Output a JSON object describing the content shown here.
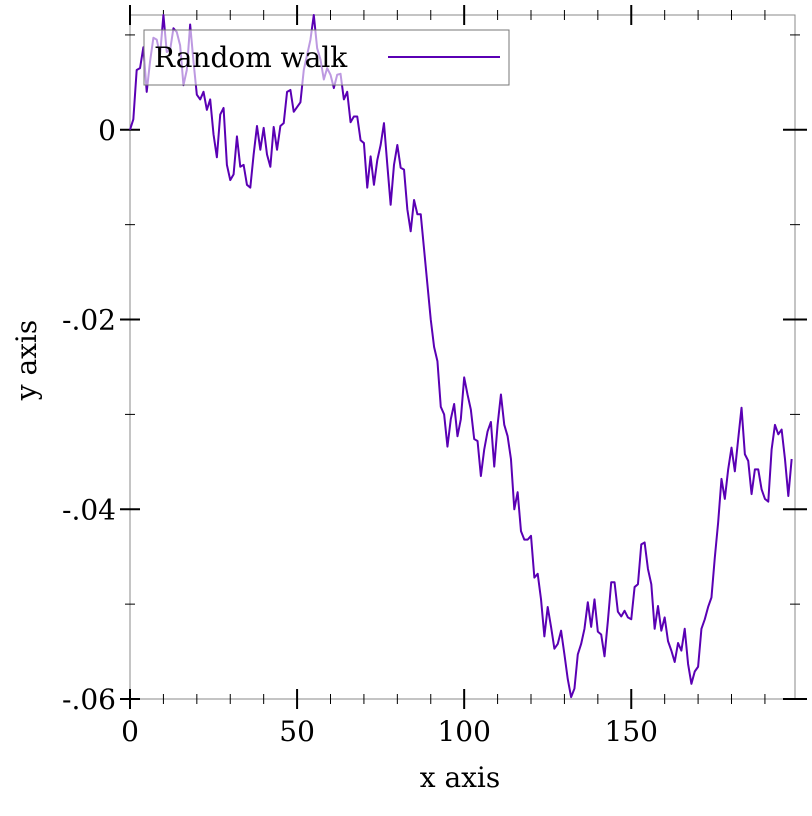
{
  "chart_data": {
    "type": "line",
    "xlabel": "x axis",
    "ylabel": "y axis",
    "x": [
      0,
      1,
      2,
      3,
      4,
      5,
      6,
      7,
      8,
      9,
      10,
      11,
      12,
      13,
      14,
      15,
      16,
      17,
      18,
      19,
      20,
      21,
      22,
      23,
      24,
      25,
      26,
      27,
      28,
      29,
      30,
      31,
      32,
      33,
      34,
      35,
      36,
      37,
      38,
      39,
      40,
      41,
      42,
      43,
      44,
      45,
      46,
      47,
      48,
      49,
      50,
      51,
      52,
      53,
      54,
      55,
      56,
      57,
      58,
      59,
      60,
      61,
      62,
      63,
      64,
      65,
      66,
      67,
      68,
      69,
      70,
      71,
      72,
      73,
      74,
      75,
      76,
      77,
      78,
      79,
      80,
      81,
      82,
      83,
      84,
      85,
      86,
      87,
      88,
      89,
      90,
      91,
      92,
      93,
      94,
      95,
      96,
      97,
      98,
      99,
      100,
      101,
      102,
      103,
      104,
      105,
      106,
      107,
      108,
      109,
      110,
      111,
      112,
      113,
      114,
      115,
      116,
      117,
      118,
      119,
      120,
      121,
      122,
      123,
      124,
      125,
      126,
      127,
      128,
      129,
      130,
      131,
      132,
      133,
      134,
      135,
      136,
      137,
      138,
      139,
      140,
      141,
      142,
      143,
      144,
      145,
      146,
      147,
      148,
      149,
      150,
      151,
      152,
      153,
      154,
      155,
      156,
      157,
      158,
      159,
      160,
      161,
      162,
      163,
      164,
      165,
      166,
      167,
      168,
      169,
      170,
      171,
      172,
      173,
      174,
      175,
      176,
      177,
      178,
      179,
      180,
      181,
      182,
      183,
      184,
      185,
      186,
      187,
      188,
      189,
      190,
      191,
      192,
      193,
      194,
      195,
      196,
      197,
      198
    ],
    "series": [
      {
        "name": "Random walk",
        "color": "#5a00b4",
        "values": [
          0,
          0.0011,
          0.0063,
          0.0065,
          0.0087,
          0.004,
          0.0072,
          0.0097,
          0.0095,
          0.0079,
          0.0121,
          0.0082,
          0.0084,
          0.0107,
          0.0103,
          0.0089,
          0.0047,
          0.0063,
          0.0111,
          0.0072,
          0.0037,
          0.0032,
          0.004,
          0.0021,
          0.0032,
          -0.0005,
          -0.0029,
          0.0016,
          0.0023,
          -0.0037,
          -0.0053,
          -0.0047,
          -0.0007,
          -0.0039,
          -0.0037,
          -0.0058,
          -0.0061,
          -0.0026,
          0.0004,
          -0.0021,
          0.0002,
          -0.0026,
          -0.0039,
          0.0003,
          -0.0021,
          0.0004,
          0.0007,
          0.004,
          0.0042,
          0.0019,
          0.0024,
          0.0029,
          0.0063,
          0.0079,
          0.0095,
          0.0121,
          0.0086,
          0.0074,
          0.0053,
          0.0065,
          0.0058,
          0.0044,
          0.0058,
          0.0059,
          0.0032,
          0.004,
          0.0008,
          0.0014,
          0.0014,
          -0.0011,
          -0.0014,
          -0.0061,
          -0.0028,
          -0.0058,
          -0.0032,
          -0.0016,
          0.0007,
          -0.0037,
          -0.0079,
          -0.0037,
          -0.0016,
          -0.004,
          -0.0042,
          -0.0084,
          -0.0107,
          -0.0074,
          -0.0089,
          -0.0089,
          -0.0126,
          -0.0163,
          -0.02,
          -0.0229,
          -0.0244,
          -0.0292,
          -0.03,
          -0.0334,
          -0.0305,
          -0.0289,
          -0.0323,
          -0.0305,
          -0.0261,
          -0.0279,
          -0.0295,
          -0.0326,
          -0.0328,
          -0.0365,
          -0.0337,
          -0.0318,
          -0.0308,
          -0.0355,
          -0.0311,
          -0.0279,
          -0.0311,
          -0.0323,
          -0.0347,
          -0.04,
          -0.0382,
          -0.0423,
          -0.0432,
          -0.0432,
          -0.0428,
          -0.0472,
          -0.0468,
          -0.0495,
          -0.0534,
          -0.0503,
          -0.0524,
          -0.0547,
          -0.0542,
          -0.0528,
          -0.0553,
          -0.0579,
          -0.0598,
          -0.0589,
          -0.0553,
          -0.0542,
          -0.0526,
          -0.0498,
          -0.0524,
          -0.0495,
          -0.0529,
          -0.0532,
          -0.0555,
          -0.0518,
          -0.0477,
          -0.0477,
          -0.0508,
          -0.0513,
          -0.0507,
          -0.0514,
          -0.0516,
          -0.0482,
          -0.0479,
          -0.0437,
          -0.0435,
          -0.0463,
          -0.0479,
          -0.0526,
          -0.0502,
          -0.0528,
          -0.0514,
          -0.0539,
          -0.0549,
          -0.0561,
          -0.0541,
          -0.0549,
          -0.0526,
          -0.0563,
          -0.0584,
          -0.0571,
          -0.0566,
          -0.0526,
          -0.0516,
          -0.0503,
          -0.0493,
          -0.0451,
          -0.0414,
          -0.0368,
          -0.0389,
          -0.0358,
          -0.0335,
          -0.036,
          -0.0326,
          -0.0293,
          -0.0342,
          -0.0349,
          -0.0384,
          -0.0358,
          -0.0358,
          -0.0379,
          -0.0389,
          -0.0392,
          -0.0337,
          -0.0311,
          -0.0321,
          -0.0316,
          -0.0347,
          -0.0386,
          -0.0347
        ]
      }
    ],
    "xlim": [
      0,
      199
    ],
    "xticks": [
      0,
      50,
      100,
      150
    ],
    "ylim": [
      -0.06,
      0.0121
    ],
    "yticks": [
      {
        "value": 0,
        "label": "0"
      },
      {
        "value": -0.02,
        "label": "-.02"
      },
      {
        "value": -0.04,
        "label": "-.04"
      },
      {
        "value": -0.06,
        "label": "-.06"
      }
    ],
    "legend": "top-left"
  }
}
